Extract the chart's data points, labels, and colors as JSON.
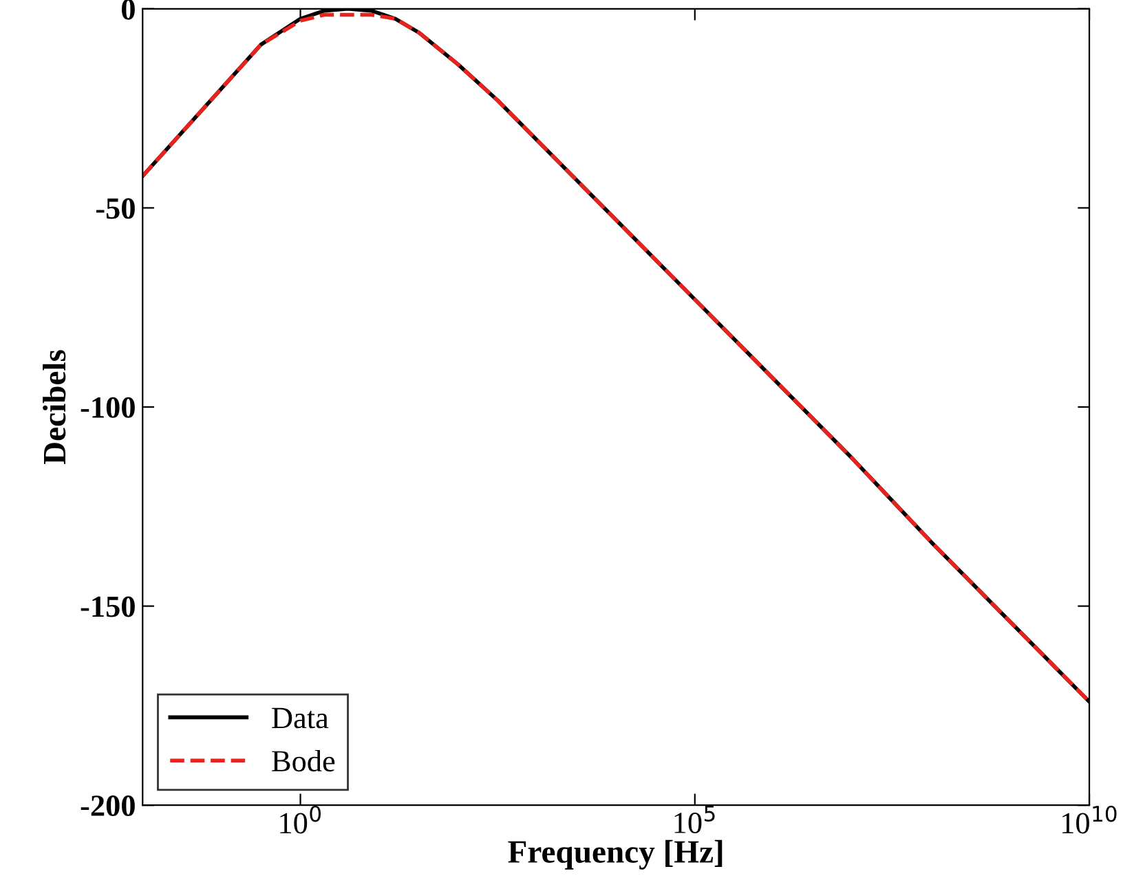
{
  "chart_data": {
    "type": "line",
    "xlabel": "Frequency [Hz]",
    "ylabel": "Decibels",
    "log": "x",
    "xlim": [
      0.01,
      10000000000
    ],
    "ylim": [
      -200,
      0
    ],
    "xticks": [
      {
        "value": 1,
        "label": "10$^{0}$"
      },
      {
        "value": 100000,
        "label": "10$^{5}$"
      },
      {
        "value": 10000000000,
        "label": "10$^{10}$"
      }
    ],
    "yticks": [
      -200,
      -150,
      -100,
      -50,
      0
    ],
    "grid": false,
    "legend": "bottom left",
    "series": [
      {
        "name": "Data",
        "color": "#000000",
        "line_style": "solid",
        "x": [
          0.01,
          0.0316,
          0.1,
          0.316,
          1,
          2,
          4,
          8,
          16,
          32,
          100,
          316,
          1000,
          10000,
          100000,
          1000000,
          10000000,
          100000000,
          1000000000,
          10000000000
        ],
        "values": [
          -42,
          -31,
          -20,
          -9,
          -2.5,
          -0.5,
          0,
          -0.5,
          -2.5,
          -6,
          -14,
          -23,
          -33,
          -53,
          -73,
          -93,
          -113,
          -134,
          -154,
          -174
        ]
      },
      {
        "name": "Bode",
        "color": "#e8231e",
        "line_style": "dashed",
        "x": [
          0.01,
          0.0316,
          0.1,
          0.316,
          1,
          2,
          4,
          8,
          16,
          32,
          100,
          316,
          1000,
          10000,
          100000,
          1000000,
          10000000,
          100000000,
          1000000000,
          10000000000
        ],
        "values": [
          -42,
          -31,
          -20,
          -9,
          -3,
          -1.5,
          -1.5,
          -1.5,
          -2.5,
          -6,
          -14,
          -23,
          -33,
          -53,
          -73,
          -93,
          -113,
          -134,
          -154,
          -174
        ]
      }
    ]
  }
}
